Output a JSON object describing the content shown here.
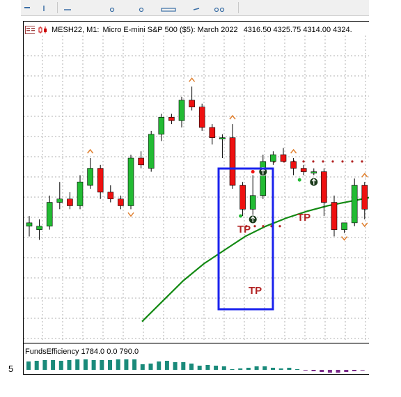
{
  "chart_header": {
    "symbol_timeframe": "MESH22, M1:",
    "description": "Micro E-mini S&P 500 ($5): March 2022",
    "ohlc": "4316.50 4325.75 4314.00 4324."
  },
  "indicator": {
    "label": "FundsEfficiency 1784.0 0.0 790.0"
  },
  "left_number": "5",
  "annotations": {
    "tp_labels": [
      "TP",
      "TP",
      "TP"
    ]
  },
  "colors": {
    "bull": "#22bb33",
    "bear": "#ee1111",
    "ma": "#138a13",
    "highlight_box": "#1a22ee",
    "tp": "#b22222",
    "hist_pos": "#1a8a7a",
    "hist_neg": "#7a2a8a",
    "grid": "#b0b0b0"
  },
  "chart_data": {
    "type": "candlestick",
    "candles": [
      {
        "o": 4312.0,
        "h": 4313.5,
        "l": 4310.5,
        "c": 4312.5
      },
      {
        "o": 4311.5,
        "h": 4313.0,
        "l": 4310.0,
        "c": 4312.0
      },
      {
        "o": 4312.0,
        "h": 4316.5,
        "l": 4311.5,
        "c": 4315.5
      },
      {
        "o": 4315.5,
        "h": 4318.5,
        "l": 4314.5,
        "c": 4316.0
      },
      {
        "o": 4316.0,
        "h": 4317.0,
        "l": 4314.5,
        "c": 4315.0
      },
      {
        "o": 4315.0,
        "h": 4319.5,
        "l": 4314.5,
        "c": 4318.5
      },
      {
        "o": 4318.0,
        "h": 4322.0,
        "l": 4317.5,
        "c": 4320.5
      },
      {
        "o": 4320.5,
        "h": 4321.0,
        "l": 4316.0,
        "c": 4317.0
      },
      {
        "o": 4317.0,
        "h": 4318.0,
        "l": 4315.5,
        "c": 4316.0
      },
      {
        "o": 4316.0,
        "h": 4316.5,
        "l": 4314.5,
        "c": 4315.0
      },
      {
        "o": 4315.0,
        "h": 4322.5,
        "l": 4314.5,
        "c": 4322.0
      },
      {
        "o": 4322.0,
        "h": 4323.0,
        "l": 4320.5,
        "c": 4321.0
      },
      {
        "o": 4320.5,
        "h": 4326.0,
        "l": 4320.0,
        "c": 4325.5
      },
      {
        "o": 4325.5,
        "h": 4328.5,
        "l": 4324.5,
        "c": 4328.0
      },
      {
        "o": 4328.0,
        "h": 4328.5,
        "l": 4327.0,
        "c": 4327.5
      },
      {
        "o": 4327.5,
        "h": 4331.0,
        "l": 4326.5,
        "c": 4330.5
      },
      {
        "o": 4330.5,
        "h": 4332.5,
        "l": 4329.0,
        "c": 4329.5
      },
      {
        "o": 4329.5,
        "h": 4330.0,
        "l": 4326.0,
        "c": 4326.5
      },
      {
        "o": 4326.5,
        "h": 4327.0,
        "l": 4324.0,
        "c": 4325.0
      },
      {
        "o": 4325.0,
        "h": 4325.5,
        "l": 4322.0,
        "c": 4325.0
      },
      {
        "o": 4325.0,
        "h": 4327.0,
        "l": 4317.5,
        "c": 4318.0
      },
      {
        "o": 4318.0,
        "h": 4318.5,
        "l": 4313.5,
        "c": 4314.5
      },
      {
        "o": 4314.5,
        "h": 4319.5,
        "l": 4313.5,
        "c": 4316.5
      },
      {
        "o": 4316.5,
        "h": 4322.5,
        "l": 4316.0,
        "c": 4321.5
      },
      {
        "o": 4321.5,
        "h": 4323.0,
        "l": 4321.0,
        "c": 4322.5
      },
      {
        "o": 4322.5,
        "h": 4323.5,
        "l": 4321.5,
        "c": 4321.5
      },
      {
        "o": 4321.5,
        "h": 4322.0,
        "l": 4319.5,
        "c": 4320.5
      },
      {
        "o": 4320.5,
        "h": 4321.0,
        "l": 4319.5,
        "c": 4320.0
      },
      {
        "o": 4320.0,
        "h": 4320.5,
        "l": 4319.5,
        "c": 4320.0
      },
      {
        "o": 4320.0,
        "h": 4320.5,
        "l": 4313.5,
        "c": 4315.5
      },
      {
        "o": 4315.5,
        "h": 4316.5,
        "l": 4310.5,
        "c": 4311.5
      },
      {
        "o": 4311.5,
        "h": 4312.5,
        "l": 4311.0,
        "c": 4312.5
      },
      {
        "o": 4312.5,
        "h": 4319.0,
        "l": 4312.0,
        "c": 4318.0
      },
      {
        "o": 4318.0,
        "h": 4318.5,
        "l": 4313.0,
        "c": 4314.5
      },
      {
        "o": 4314.5,
        "h": 4316.5,
        "l": 4313.5,
        "c": 4316.0
      }
    ],
    "ma_line": [
      4298,
      4301,
      4304,
      4306.5,
      4308.5,
      4310.5,
      4312,
      4313.2,
      4314.2,
      4315,
      4315.6,
      4316.2
    ],
    "funds_efficiency": [
      12,
      13,
      14,
      14,
      13,
      14,
      15,
      15,
      14,
      14,
      14,
      15,
      15,
      15,
      8,
      9,
      12,
      13,
      11,
      11,
      9,
      6,
      7,
      6,
      5,
      1,
      2,
      3,
      5,
      5,
      3,
      2,
      3,
      1,
      -1,
      -2,
      -3,
      -4,
      -4,
      -3,
      -2,
      -1
    ],
    "tp_dots_y": 4321.5,
    "tp_dots_low_y": 4312.0
  }
}
